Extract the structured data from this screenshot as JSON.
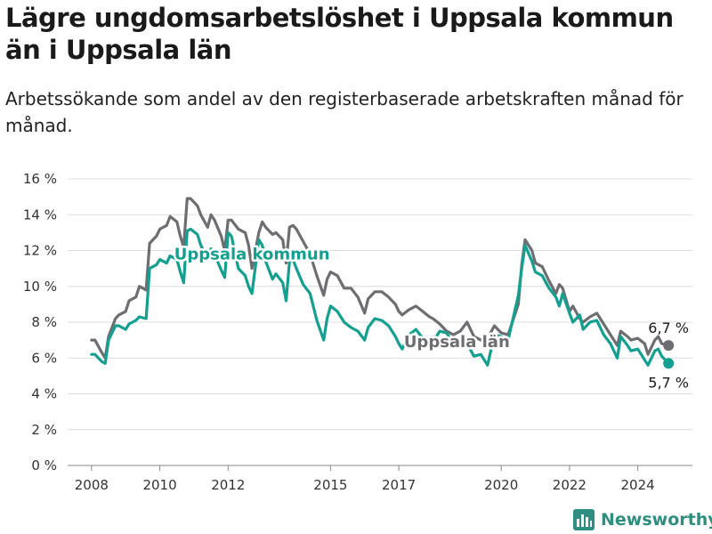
{
  "title": "Lägre ungdomsarbetslöshet i Uppsala kommun än i Uppsala län",
  "subtitle": "Arbetssökande som andel av den registerbaserade arbetskraften månad för månad.",
  "brand": {
    "name": "Newsworthy",
    "color": "#2e8f80"
  },
  "chart_data": {
    "type": "line",
    "title": "Lägre ungdomsarbetslöshet i Uppsala kommun än i Uppsala län",
    "subtitle": "Arbetssökande som andel av den registerbaserade arbetskraften månad för månad.",
    "xlabel": "",
    "ylabel": "",
    "xlim": [
      2007.3,
      2025.6
    ],
    "ylim": [
      0,
      16
    ],
    "y_ticks": [
      0,
      2,
      4,
      6,
      8,
      10,
      12,
      14,
      16
    ],
    "y_tick_labels": [
      "0 %",
      "2 %",
      "4 %",
      "6 %",
      "8 %",
      "10 %",
      "12 %",
      "14 %",
      "16 %"
    ],
    "x_ticks": [
      2008,
      2010,
      2012,
      2015,
      2017,
      2020,
      2022,
      2024
    ],
    "x_tick_labels": [
      "2008",
      "2010",
      "2012",
      "2015",
      "2017",
      "2020",
      "2022",
      "2024"
    ],
    "grid": "horizontal",
    "series": [
      {
        "name": "Uppsala län",
        "color": "#6e6d72",
        "end_label": "6,7 %",
        "points": [
          [
            2008.0,
            7.0
          ],
          [
            2008.1,
            7.0
          ],
          [
            2008.3,
            6.3
          ],
          [
            2008.4,
            6.0
          ],
          [
            2008.5,
            7.2
          ],
          [
            2008.7,
            8.2
          ],
          [
            2008.8,
            8.4
          ],
          [
            2009.0,
            8.6
          ],
          [
            2009.1,
            9.2
          ],
          [
            2009.3,
            9.4
          ],
          [
            2009.4,
            10.0
          ],
          [
            2009.6,
            9.8
          ],
          [
            2009.7,
            12.4
          ],
          [
            2009.9,
            12.8
          ],
          [
            2010.0,
            13.2
          ],
          [
            2010.2,
            13.4
          ],
          [
            2010.3,
            13.9
          ],
          [
            2010.5,
            13.6
          ],
          [
            2010.6,
            12.8
          ],
          [
            2010.7,
            12.2
          ],
          [
            2010.8,
            14.9
          ],
          [
            2010.9,
            14.9
          ],
          [
            2011.1,
            14.5
          ],
          [
            2011.2,
            14.0
          ],
          [
            2011.4,
            13.3
          ],
          [
            2011.5,
            14.0
          ],
          [
            2011.6,
            13.7
          ],
          [
            2011.8,
            12.8
          ],
          [
            2011.9,
            12.0
          ],
          [
            2012.0,
            13.7
          ],
          [
            2012.1,
            13.7
          ],
          [
            2012.3,
            13.2
          ],
          [
            2012.5,
            13.0
          ],
          [
            2012.6,
            12.3
          ],
          [
            2012.7,
            11.0
          ],
          [
            2012.9,
            13.0
          ],
          [
            2013.0,
            13.6
          ],
          [
            2013.1,
            13.3
          ],
          [
            2013.3,
            12.9
          ],
          [
            2013.4,
            13.0
          ],
          [
            2013.6,
            12.6
          ],
          [
            2013.7,
            11.3
          ],
          [
            2013.8,
            13.3
          ],
          [
            2013.9,
            13.4
          ],
          [
            2014.0,
            13.2
          ],
          [
            2014.2,
            12.5
          ],
          [
            2014.4,
            11.8
          ],
          [
            2014.6,
            10.6
          ],
          [
            2014.8,
            9.5
          ],
          [
            2014.9,
            10.4
          ],
          [
            2015.0,
            10.8
          ],
          [
            2015.2,
            10.6
          ],
          [
            2015.4,
            9.9
          ],
          [
            2015.6,
            9.9
          ],
          [
            2015.8,
            9.4
          ],
          [
            2016.0,
            8.5
          ],
          [
            2016.1,
            9.3
          ],
          [
            2016.3,
            9.7
          ],
          [
            2016.5,
            9.7
          ],
          [
            2016.7,
            9.4
          ],
          [
            2016.9,
            9.0
          ],
          [
            2017.0,
            8.6
          ],
          [
            2017.1,
            8.4
          ],
          [
            2017.3,
            8.7
          ],
          [
            2017.5,
            8.9
          ],
          [
            2017.7,
            8.6
          ],
          [
            2017.9,
            8.3
          ],
          [
            2018.0,
            8.2
          ],
          [
            2018.2,
            7.9
          ],
          [
            2018.4,
            7.5
          ],
          [
            2018.6,
            7.3
          ],
          [
            2018.8,
            7.5
          ],
          [
            2019.0,
            8.0
          ],
          [
            2019.2,
            7.2
          ],
          [
            2019.4,
            7.0
          ],
          [
            2019.6,
            7.1
          ],
          [
            2019.8,
            7.8
          ],
          [
            2020.0,
            7.4
          ],
          [
            2020.2,
            7.3
          ],
          [
            2020.5,
            9.0
          ],
          [
            2020.6,
            11.2
          ],
          [
            2020.7,
            12.6
          ],
          [
            2020.9,
            12.0
          ],
          [
            2021.0,
            11.3
          ],
          [
            2021.2,
            11.1
          ],
          [
            2021.4,
            10.3
          ],
          [
            2021.6,
            9.6
          ],
          [
            2021.7,
            10.1
          ],
          [
            2021.8,
            9.9
          ],
          [
            2022.0,
            8.6
          ],
          [
            2022.1,
            8.9
          ],
          [
            2022.3,
            8.2
          ],
          [
            2022.4,
            8.0
          ],
          [
            2022.6,
            8.3
          ],
          [
            2022.8,
            8.5
          ],
          [
            2023.0,
            7.9
          ],
          [
            2023.2,
            7.3
          ],
          [
            2023.4,
            6.7
          ],
          [
            2023.5,
            7.5
          ],
          [
            2023.7,
            7.2
          ],
          [
            2023.8,
            7.0
          ],
          [
            2024.0,
            7.1
          ],
          [
            2024.2,
            6.8
          ],
          [
            2024.3,
            6.2
          ],
          [
            2024.5,
            7.0
          ],
          [
            2024.6,
            7.2
          ],
          [
            2024.7,
            6.8
          ],
          [
            2024.9,
            6.7
          ]
        ]
      },
      {
        "name": "Uppsala kommun",
        "color": "#13a090",
        "end_label": "5,7 %",
        "points": [
          [
            2008.0,
            6.2
          ],
          [
            2008.1,
            6.2
          ],
          [
            2008.3,
            5.8
          ],
          [
            2008.4,
            5.7
          ],
          [
            2008.5,
            7.0
          ],
          [
            2008.7,
            7.8
          ],
          [
            2008.8,
            7.8
          ],
          [
            2009.0,
            7.6
          ],
          [
            2009.1,
            7.9
          ],
          [
            2009.3,
            8.1
          ],
          [
            2009.4,
            8.3
          ],
          [
            2009.6,
            8.2
          ],
          [
            2009.7,
            11.0
          ],
          [
            2009.9,
            11.2
          ],
          [
            2010.0,
            11.5
          ],
          [
            2010.2,
            11.3
          ],
          [
            2010.3,
            11.7
          ],
          [
            2010.5,
            11.5
          ],
          [
            2010.6,
            10.8
          ],
          [
            2010.7,
            10.2
          ],
          [
            2010.8,
            13.1
          ],
          [
            2010.9,
            13.2
          ],
          [
            2011.1,
            12.9
          ],
          [
            2011.2,
            12.3
          ],
          [
            2011.4,
            11.5
          ],
          [
            2011.5,
            12.1
          ],
          [
            2011.6,
            11.8
          ],
          [
            2011.8,
            10.9
          ],
          [
            2011.9,
            10.5
          ],
          [
            2012.0,
            13.0
          ],
          [
            2012.1,
            12.8
          ],
          [
            2012.3,
            11.0
          ],
          [
            2012.5,
            10.6
          ],
          [
            2012.6,
            10.0
          ],
          [
            2012.7,
            9.6
          ],
          [
            2012.9,
            12.6
          ],
          [
            2013.0,
            12.3
          ],
          [
            2013.1,
            11.4
          ],
          [
            2013.3,
            10.4
          ],
          [
            2013.4,
            10.7
          ],
          [
            2013.6,
            10.2
          ],
          [
            2013.7,
            9.2
          ],
          [
            2013.8,
            11.4
          ],
          [
            2013.9,
            11.5
          ],
          [
            2014.0,
            11.0
          ],
          [
            2014.2,
            10.1
          ],
          [
            2014.4,
            9.6
          ],
          [
            2014.6,
            8.1
          ],
          [
            2014.8,
            7.0
          ],
          [
            2014.9,
            8.2
          ],
          [
            2015.0,
            8.9
          ],
          [
            2015.2,
            8.6
          ],
          [
            2015.4,
            8.0
          ],
          [
            2015.6,
            7.7
          ],
          [
            2015.8,
            7.5
          ],
          [
            2016.0,
            7.0
          ],
          [
            2016.1,
            7.7
          ],
          [
            2016.3,
            8.2
          ],
          [
            2016.5,
            8.1
          ],
          [
            2016.7,
            7.8
          ],
          [
            2016.9,
            7.2
          ],
          [
            2017.0,
            6.8
          ],
          [
            2017.1,
            6.5
          ],
          [
            2017.3,
            7.3
          ],
          [
            2017.5,
            7.6
          ],
          [
            2017.7,
            7.1
          ],
          [
            2017.9,
            7.0
          ],
          [
            2018.0,
            6.9
          ],
          [
            2018.2,
            7.5
          ],
          [
            2018.4,
            7.4
          ],
          [
            2018.6,
            6.8
          ],
          [
            2018.8,
            7.0
          ],
          [
            2019.0,
            6.8
          ],
          [
            2019.2,
            6.1
          ],
          [
            2019.4,
            6.2
          ],
          [
            2019.6,
            5.6
          ],
          [
            2019.8,
            7.3
          ],
          [
            2020.0,
            7.2
          ],
          [
            2020.2,
            7.0
          ],
          [
            2020.5,
            9.5
          ],
          [
            2020.6,
            11.0
          ],
          [
            2020.7,
            12.3
          ],
          [
            2020.9,
            11.4
          ],
          [
            2021.0,
            10.8
          ],
          [
            2021.2,
            10.6
          ],
          [
            2021.4,
            9.9
          ],
          [
            2021.6,
            9.4
          ],
          [
            2021.7,
            8.9
          ],
          [
            2021.8,
            9.6
          ],
          [
            2022.0,
            8.5
          ],
          [
            2022.1,
            8.0
          ],
          [
            2022.3,
            8.4
          ],
          [
            2022.4,
            7.6
          ],
          [
            2022.6,
            8.0
          ],
          [
            2022.8,
            8.1
          ],
          [
            2023.0,
            7.3
          ],
          [
            2023.2,
            6.8
          ],
          [
            2023.4,
            6.0
          ],
          [
            2023.5,
            7.2
          ],
          [
            2023.7,
            6.7
          ],
          [
            2023.8,
            6.4
          ],
          [
            2024.0,
            6.5
          ],
          [
            2024.2,
            5.9
          ],
          [
            2024.3,
            5.6
          ],
          [
            2024.5,
            6.4
          ],
          [
            2024.6,
            6.5
          ],
          [
            2024.7,
            6.1
          ],
          [
            2024.9,
            5.7
          ]
        ]
      }
    ],
    "annotations": [
      {
        "text": "Uppsala kommun",
        "series": "Uppsala kommun",
        "x": 2012.7,
        "y": 11.5
      },
      {
        "text": "Uppsala län",
        "series": "Uppsala län",
        "x": 2018.7,
        "y": 6.6
      }
    ]
  }
}
